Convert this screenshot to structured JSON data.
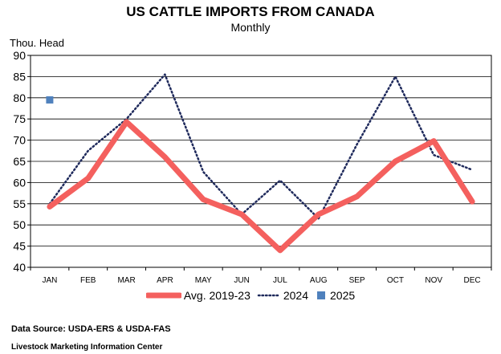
{
  "header": {
    "title": "US CATTLE IMPORTS FROM CANADA",
    "subtitle": "Monthly"
  },
  "footer": {
    "source": "Data Source:  USDA-ERS & USDA-FAS",
    "center": "Livestock Marketing Information Center"
  },
  "chart_data": {
    "type": "line",
    "title": "US CATTLE IMPORTS FROM CANADA",
    "subtitle": "Monthly",
    "ylabel": "Thou. Head",
    "xlabel": "",
    "ylim": [
      40,
      90
    ],
    "yticks": [
      40,
      45,
      50,
      55,
      60,
      65,
      70,
      75,
      80,
      85,
      90
    ],
    "grid": true,
    "legend_position": "bottom",
    "categories": [
      "JAN",
      "FEB",
      "MAR",
      "APR",
      "MAY",
      "JUN",
      "JUL",
      "AUG",
      "SEP",
      "OCT",
      "NOV",
      "DEC"
    ],
    "series": [
      {
        "name": "Avg. 2019-23",
        "style": "thick-solid",
        "color": "#f4605e",
        "values": [
          54.3,
          61.0,
          74.3,
          66.0,
          56.0,
          52.5,
          44.0,
          52.5,
          56.7,
          65.0,
          69.8,
          55.5
        ]
      },
      {
        "name": "2024",
        "style": "dotted",
        "color": "#1f2a5c",
        "values": [
          55.0,
          67.5,
          75.0,
          85.5,
          62.5,
          52.5,
          60.5,
          51.5,
          69.0,
          85.0,
          66.5,
          63.0
        ]
      },
      {
        "name": "2025",
        "style": "marker",
        "color": "#4f81bd",
        "values": [
          79.5,
          null,
          null,
          null,
          null,
          null,
          null,
          null,
          null,
          null,
          null,
          null
        ]
      }
    ]
  }
}
